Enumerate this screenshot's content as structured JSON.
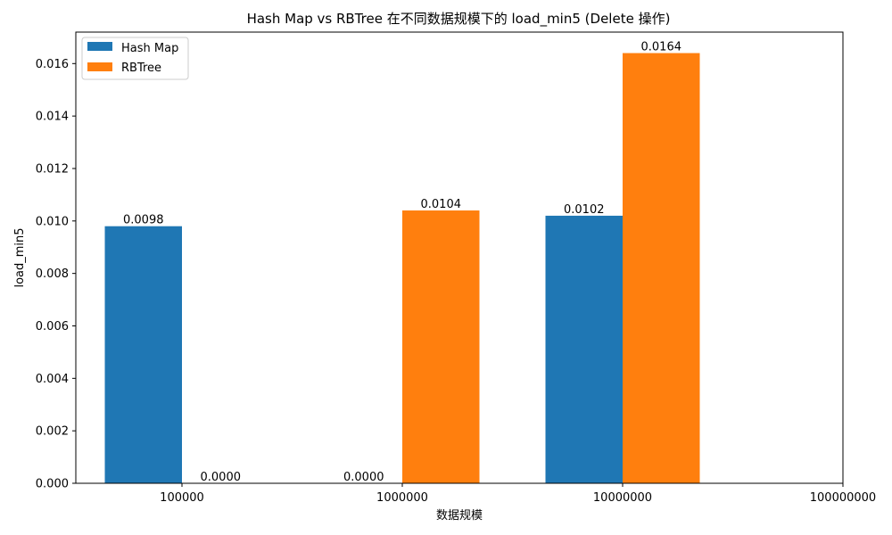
{
  "chart_data": {
    "type": "bar",
    "title": "Hash Map vs RBTree 在不同数据规模下的 load_min5 (Delete 操作)",
    "xlabel": "数据规模",
    "ylabel": "load_min5",
    "categories": [
      "100000",
      "1000000",
      "10000000",
      "100000000"
    ],
    "series": [
      {
        "name": "Hash Map",
        "color": "#1f77b4",
        "values": [
          0.0098,
          0.0,
          0.0102,
          null
        ],
        "labels": [
          "0.0098",
          "0.0000",
          "0.0102",
          null
        ]
      },
      {
        "name": "RBTree",
        "color": "#ff7f0e",
        "values": [
          0.0,
          0.0104,
          0.0164,
          null
        ],
        "labels": [
          "0.0000",
          "0.0104",
          "0.0164",
          null
        ]
      }
    ],
    "ylim": [
      0,
      0.0172
    ],
    "yticks": [
      "0.000",
      "0.002",
      "0.004",
      "0.006",
      "0.008",
      "0.010",
      "0.012",
      "0.014",
      "0.016"
    ],
    "grid": false,
    "legend_position": "top-left"
  }
}
